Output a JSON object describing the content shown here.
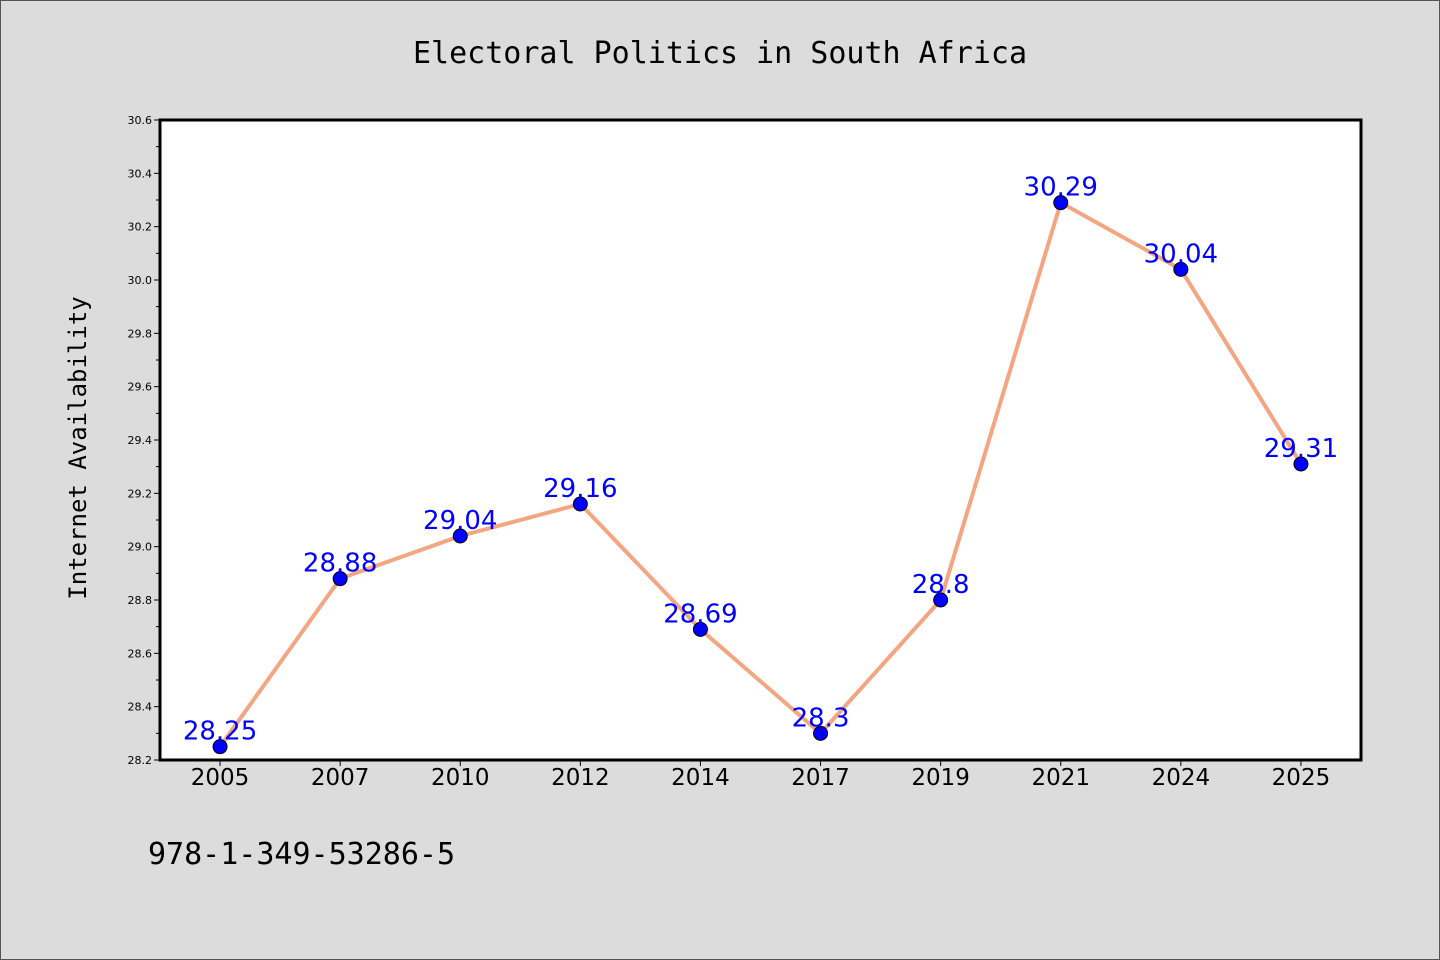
{
  "chart_data": {
    "type": "line",
    "title": "Electoral Politics in South Africa",
    "xlabel": "",
    "ylabel": "Internet Availability",
    "categories": [
      "2005",
      "2007",
      "2010",
      "2012",
      "2014",
      "2017",
      "2019",
      "2021",
      "2024",
      "2025"
    ],
    "values": [
      28.25,
      28.88,
      29.04,
      29.16,
      28.69,
      28.3,
      28.8,
      30.29,
      30.04,
      29.31
    ],
    "data_labels": [
      "28.25",
      "28.88",
      "29.04",
      "29.16",
      "28.69",
      "28.3",
      "28.8",
      "30.29",
      "30.04",
      "29.31"
    ],
    "ylim": [
      28.2,
      30.6
    ],
    "yticks": [
      "28.2",
      "28.4",
      "28.6",
      "28.8",
      "29.0",
      "29.2",
      "29.4",
      "29.6",
      "29.8",
      "30.0",
      "30.2",
      "30.4",
      "30.6"
    ],
    "grid": false,
    "legend": "none",
    "colors": {
      "line": "#f4a582",
      "marker": "#0000ff",
      "marker_edge": "#000000",
      "data_label": "#0000ff",
      "plot_background": "#ffffff",
      "figure_background": "#dcdcdc"
    }
  },
  "footnote": "978-1-349-53286-5"
}
